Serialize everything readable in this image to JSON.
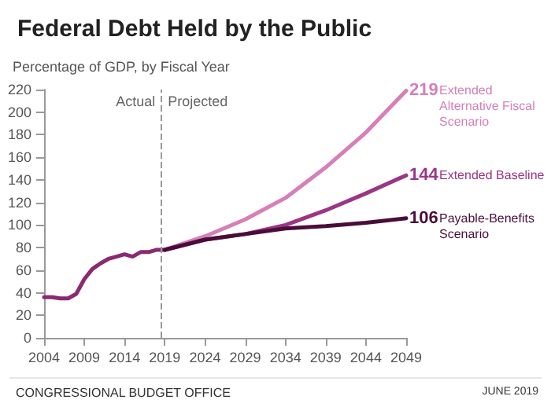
{
  "chart_data": {
    "type": "line",
    "title": "Federal Debt Held by the Public",
    "ylabel": "Percentage of GDP, by Fiscal Year",
    "xlim": [
      2004,
      2049
    ],
    "xticks": [
      2004,
      2009,
      2014,
      2019,
      2024,
      2029,
      2034,
      2039,
      2044,
      2049
    ],
    "ylim": [
      0,
      220
    ],
    "yticks": [
      0,
      20,
      40,
      60,
      80,
      100,
      120,
      140,
      160,
      180,
      200,
      220
    ],
    "grid": false,
    "legend": false,
    "marker": "none",
    "line_style": "solid",
    "ref_lines": [
      {
        "axis": "x",
        "value": 2018.6,
        "label": "Actual",
        "color": "#999999",
        "line_style": "dashed"
      }
    ],
    "series": [
      {
        "color": "#8a2a70",
        "x": [
          2004,
          2005,
          2006,
          2007,
          2008,
          2009,
          2010,
          2011,
          2012,
          2013,
          2014,
          2015,
          2016,
          2017,
          2018,
          2019
        ],
        "values": [
          36,
          36,
          35,
          35,
          39,
          52,
          61,
          66,
          70,
          72,
          74,
          72,
          76,
          76,
          78,
          78
        ]
      },
      {
        "name": "Extended Alternative Fiscal Scenario",
        "color": "#d67fb8",
        "x": [
          2019,
          2024,
          2029,
          2034,
          2039,
          2044,
          2049
        ],
        "values": [
          78,
          90,
          105,
          124,
          151,
          182,
          219
        ],
        "value_labels": [
          null,
          null,
          null,
          null,
          null,
          null,
          "219"
        ]
      },
      {
        "name": "Extended Baseline",
        "color": "#9b3585",
        "x": [
          2019,
          2024,
          2029,
          2034,
          2039,
          2044,
          2049
        ],
        "values": [
          78,
          87,
          92,
          100,
          113,
          128,
          144
        ],
        "value_labels": [
          null,
          null,
          null,
          null,
          null,
          null,
          "144"
        ]
      },
      {
        "name": "Payable-Benefits Scenario",
        "color": "#4a0d3a",
        "x": [
          2019,
          2024,
          2029,
          2034,
          2039,
          2044,
          2049
        ],
        "values": [
          78,
          87,
          92,
          97,
          99,
          102,
          106
        ],
        "value_labels": [
          null,
          null,
          null,
          null,
          null,
          null,
          "106"
        ]
      }
    ],
    "annotations": [
      "Projected",
      "CONGRESSIONAL BUDGET OFFICE",
      "JUNE 2019"
    ]
  }
}
